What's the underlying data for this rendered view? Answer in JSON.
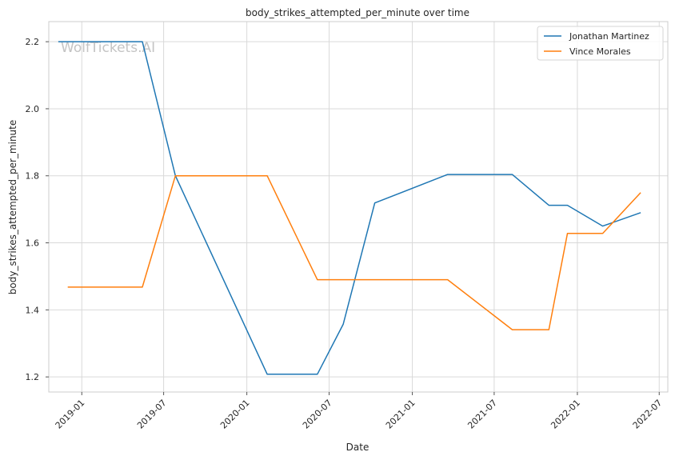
{
  "chart_data": {
    "type": "line",
    "title": "body_strikes_attempted_per_minute over time",
    "xlabel": "Date",
    "ylabel": "body_strikes_attempted_per_minute",
    "watermark": "WolfTickets.AI",
    "xlim": [
      "2018-10-20",
      "2022-07-20"
    ],
    "ylim": [
      1.155,
      2.26
    ],
    "x_ticks": [
      "2019-01",
      "2019-07",
      "2020-01",
      "2020-07",
      "2021-01",
      "2021-07",
      "2022-01",
      "2022-07"
    ],
    "y_ticks": [
      1.2,
      1.4,
      1.6,
      1.8,
      2.0,
      2.2
    ],
    "y_tick_labels": [
      "1.2",
      "1.4",
      "1.6",
      "1.8",
      "2.0",
      "2.2"
    ],
    "grid": true,
    "legend_position": "top-right",
    "series": [
      {
        "name": "Jonathan Martinez",
        "color": "#1f77b4",
        "points": [
          {
            "x": "2018-11-10",
            "y": 2.2
          },
          {
            "x": "2019-05-15",
            "y": 2.2
          },
          {
            "x": "2019-07-27",
            "y": 1.8
          },
          {
            "x": "2020-02-15",
            "y": 1.208
          },
          {
            "x": "2020-06-05",
            "y": 1.208
          },
          {
            "x": "2020-08-01",
            "y": 1.357
          },
          {
            "x": "2020-10-10",
            "y": 1.719
          },
          {
            "x": "2021-03-20",
            "y": 1.804
          },
          {
            "x": "2021-08-10",
            "y": 1.804
          },
          {
            "x": "2021-10-30",
            "y": 1.712
          },
          {
            "x": "2021-12-10",
            "y": 1.712
          },
          {
            "x": "2022-02-26",
            "y": 1.65
          },
          {
            "x": "2022-05-21",
            "y": 1.69
          }
        ]
      },
      {
        "name": "Vince Morales",
        "color": "#ff7f0e",
        "points": [
          {
            "x": "2018-12-01",
            "y": 1.468
          },
          {
            "x": "2019-05-15",
            "y": 1.468
          },
          {
            "x": "2019-07-27",
            "y": 1.8
          },
          {
            "x": "2020-02-15",
            "y": 1.8
          },
          {
            "x": "2020-06-05",
            "y": 1.49
          },
          {
            "x": "2021-03-20",
            "y": 1.49
          },
          {
            "x": "2021-08-10",
            "y": 1.341
          },
          {
            "x": "2021-10-30",
            "y": 1.341
          },
          {
            "x": "2021-12-10",
            "y": 1.628
          },
          {
            "x": "2022-02-26",
            "y": 1.628
          },
          {
            "x": "2022-05-21",
            "y": 1.75
          }
        ]
      }
    ]
  }
}
